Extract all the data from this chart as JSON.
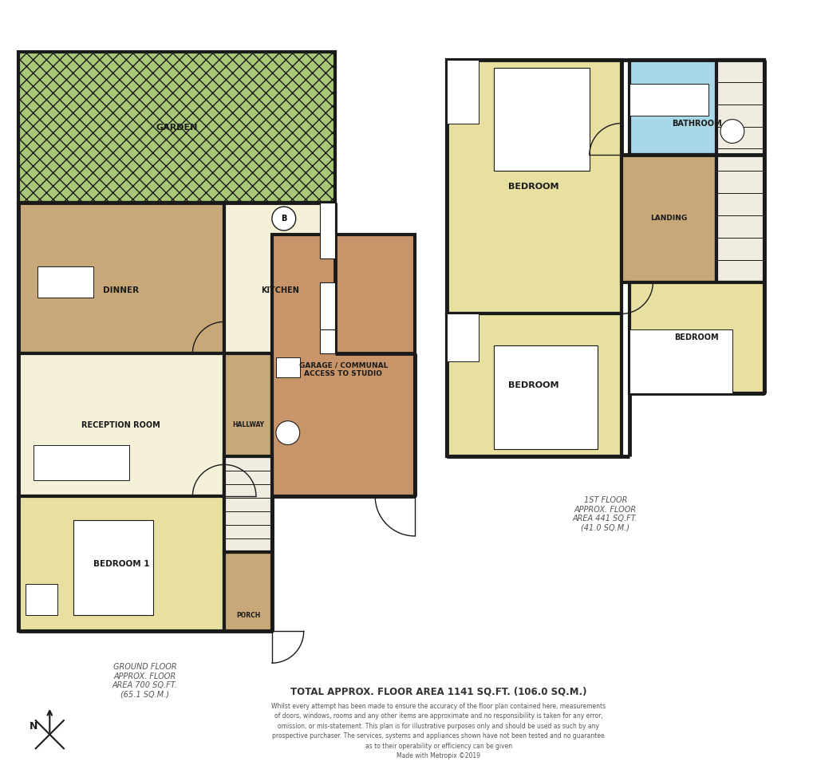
{
  "bg_color": "#ffffff",
  "wall_color": "#1a1a1a",
  "wall_lw": 3.0,
  "thin_lw": 1.0,
  "colors": {
    "garden": "#a8c878",
    "garden_hatch": "#8ab060",
    "dinner": "#c8a878",
    "kitchen": "#f5f0d8",
    "reception": "#f5f0d8",
    "hallway": "#c8a878",
    "bedroom1": "#e8e0a0",
    "garage": "#c8956a",
    "porch": "#c8a878",
    "bathroom_gf": "#a8d8e8",
    "bedroom_1f": "#e8e0a0",
    "bedroom2_1f": "#e8e0a0",
    "bedroom3_1f": "#e8e0a0",
    "landing": "#c8a878",
    "bathroom_1f": "#a8d8e8",
    "stairs": "#f0ece0"
  },
  "ground_floor_label": "GROUND FLOOR\nAPPROX. FLOOR\nAREA 700 SQ.FT.\n(65.1 SQ.M.)",
  "first_floor_label": "1ST FLOOR\nAPPROX. FLOOR\nAREA 441 SQ.FT.\n(41.0 SQ.M.)",
  "total_label": "TOTAL APPROX. FLOOR AREA 1141 SQ.FT. (106.0 SQ.M.)",
  "disclaimer": "Whilst every attempt has been made to ensure the accuracy of the floor plan contained here, measurements\nof doors, windows, rooms and any other items are approximate and no responsibility is taken for any error,\nomission, or mis-statement. This plan is for illustrative purposes only and should be used as such by any\nprospective purchaser. The services, systems and appliances shown have not been tested and no guarantee\nas to their operability or efficiency can be given\nMade with Metropix ©2019"
}
